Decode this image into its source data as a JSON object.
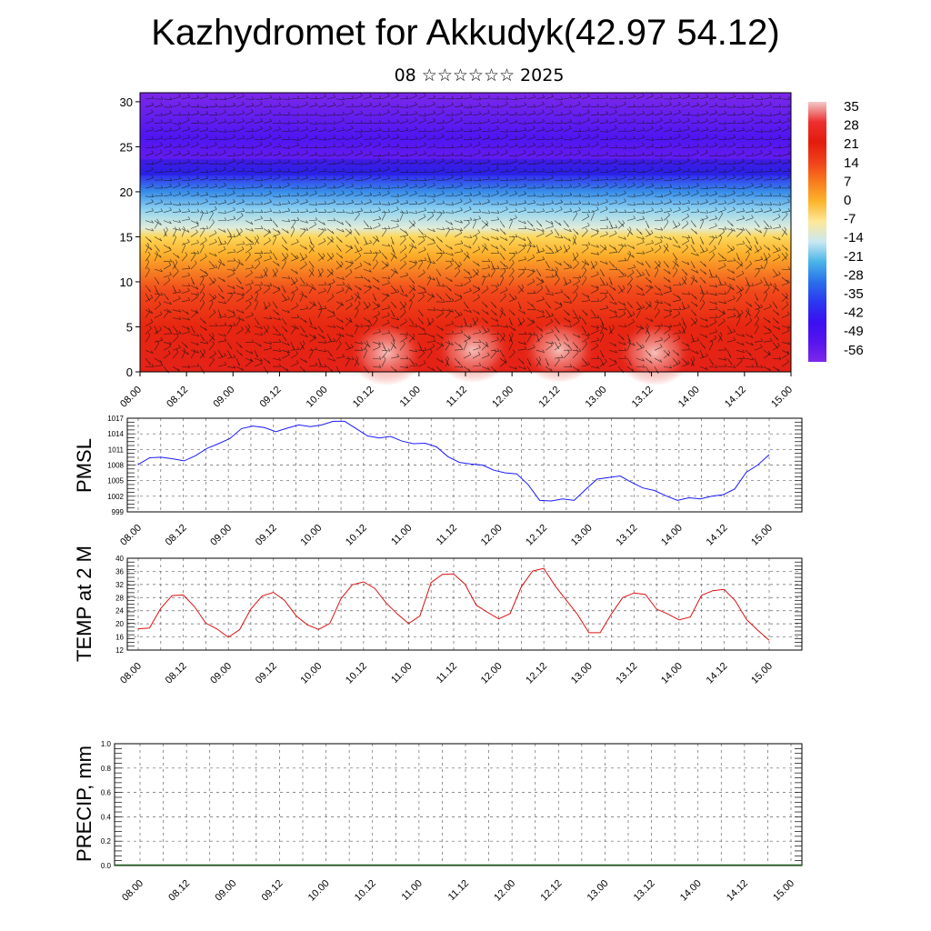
{
  "header": {
    "title": "Kazhydromet for Akkudyk(42.97 54.12)",
    "subtitle": "08 ☆☆☆☆☆☆ 2025"
  },
  "chart_data": [
    {
      "type": "heatmap",
      "title": "Kazhydromet for Akkudyk(42.97 54.12)",
      "subtitle": "08 ☆☆☆☆☆☆ 2025",
      "xlabel": "",
      "ylabel": "",
      "x_tick_labels": [
        "08.00",
        "08.12",
        "09.00",
        "09.12",
        "10.00",
        "10.12",
        "11.00",
        "11.12",
        "12.00",
        "12.12",
        "13.00",
        "13.12",
        "14.00",
        "14.12",
        "15.00"
      ],
      "y_ticks": [
        0,
        5,
        10,
        15,
        20,
        25,
        30
      ],
      "ylim": [
        0,
        31
      ],
      "colorbar_labels": [
        "35",
        "28",
        "21",
        "14",
        "7",
        "0",
        "-7",
        "-14",
        "-21",
        "-28",
        "-35",
        "-42",
        "-49",
        "-56"
      ],
      "colorbar_colors": [
        "#f2c8c8",
        "#ee3030",
        "#e31b0e",
        "#f0401a",
        "#f87c1e",
        "#fbb62c",
        "#fee89a",
        "#c9e8f2",
        "#4ab4e8",
        "#2a70ea",
        "#2a38f0",
        "#3a10f2",
        "#5614ee",
        "#7c28ea"
      ],
      "temperature_profile": [
        {
          "level": 0,
          "value": 30
        },
        {
          "level": 5,
          "value": 26
        },
        {
          "level": 9,
          "value": 20
        },
        {
          "level": 13,
          "value": 8
        },
        {
          "level": 15,
          "value": -2
        },
        {
          "level": 16,
          "value": -12
        },
        {
          "level": 18,
          "value": -22
        },
        {
          "level": 20,
          "value": -32
        },
        {
          "level": 22,
          "value": -45
        },
        {
          "level": 24,
          "value": -55
        },
        {
          "level": 26,
          "value": -52
        },
        {
          "level": 31,
          "value": -60
        }
      ],
      "overlay": "wind barbs"
    },
    {
      "type": "line",
      "ylabel": "PMSL",
      "ylim": [
        999,
        1017
      ],
      "y_ticks": [
        999,
        1002,
        1005,
        1008,
        1011,
        1014,
        1017
      ],
      "x_tick_labels": [
        "08.00",
        "08.12",
        "09.00",
        "09.12",
        "10.00",
        "10.12",
        "11.00",
        "11.12",
        "12.00",
        "12.12",
        "13.00",
        "13.12",
        "14.00",
        "14.12",
        "15.00"
      ],
      "grid": true,
      "series": [
        {
          "color": "#1a1aff",
          "values": [
            1008.1,
            1009.4,
            1009.5,
            1009.2,
            1008.8,
            1009.8,
            1011.2,
            1012.1,
            1013.1,
            1015.0,
            1015.5,
            1015.2,
            1014.4,
            1015.1,
            1015.7,
            1015.4,
            1015.7,
            1016.4,
            1016.4,
            1015.0,
            1013.6,
            1013.2,
            1013.5,
            1012.6,
            1012.1,
            1012.2,
            1011.5,
            1009.6,
            1008.5,
            1008.2,
            1008.0,
            1007.0,
            1006.5,
            1006.3,
            1004.2,
            1001.2,
            1001.1,
            1001.5,
            1001.2,
            1003.3,
            1005.3,
            1005.6,
            1005.9,
            1004.7,
            1003.6,
            1003.1,
            1002.1,
            1001.2,
            1001.7,
            1001.5,
            1002.0,
            1002.3,
            1003.4,
            1006.6,
            1008.0,
            1010.0
          ]
        }
      ]
    },
    {
      "type": "line",
      "ylabel": "TEMP at 2 M",
      "ylim": [
        12,
        40
      ],
      "y_ticks": [
        12,
        16,
        20,
        24,
        28,
        32,
        36,
        40
      ],
      "x_tick_labels": [
        "08.00",
        "08.12",
        "09.00",
        "09.12",
        "10.00",
        "10.12",
        "11.00",
        "11.12",
        "12.00",
        "12.12",
        "13.00",
        "13.12",
        "14.00",
        "14.12",
        "15.00"
      ],
      "grid": true,
      "series": [
        {
          "color": "#dd1111",
          "values": [
            18.5,
            18.7,
            24.7,
            28.6,
            28.8,
            25.2,
            20.2,
            18.4,
            15.9,
            18.2,
            24.5,
            28.5,
            29.6,
            27.1,
            22.5,
            19.7,
            18.3,
            20.1,
            27.7,
            31.9,
            32.8,
            30.8,
            26.4,
            23.0,
            20.1,
            22.4,
            32.6,
            35.1,
            35.2,
            32.1,
            25.7,
            23.5,
            21.5,
            23.1,
            31.3,
            36.1,
            36.9,
            31.6,
            27.2,
            22.8,
            17.3,
            17.3,
            23.0,
            28.0,
            29.4,
            29.0,
            24.5,
            23.0,
            21.2,
            22.1,
            28.7,
            30.1,
            30.5,
            27.0,
            21.3,
            18.0,
            15.0
          ]
        }
      ]
    },
    {
      "type": "bar",
      "ylabel": "PRECIP, mm",
      "ylim": [
        0,
        1.0
      ],
      "y_ticks": [
        "0.0",
        "0.2",
        "0.4",
        "0.6",
        "0.8",
        "1.0"
      ],
      "x_tick_labels": [
        "08.00",
        "08.12",
        "09.00",
        "09.12",
        "10.00",
        "10.12",
        "11.00",
        "11.12",
        "12.00",
        "12.12",
        "13.00",
        "13.12",
        "14.00",
        "14.12",
        "15.00"
      ],
      "grid": true,
      "series": [
        {
          "color": "#1a5a1a",
          "values": [
            0,
            0,
            0,
            0,
            0,
            0,
            0,
            0,
            0,
            0,
            0,
            0,
            0,
            0,
            0
          ]
        }
      ]
    }
  ]
}
